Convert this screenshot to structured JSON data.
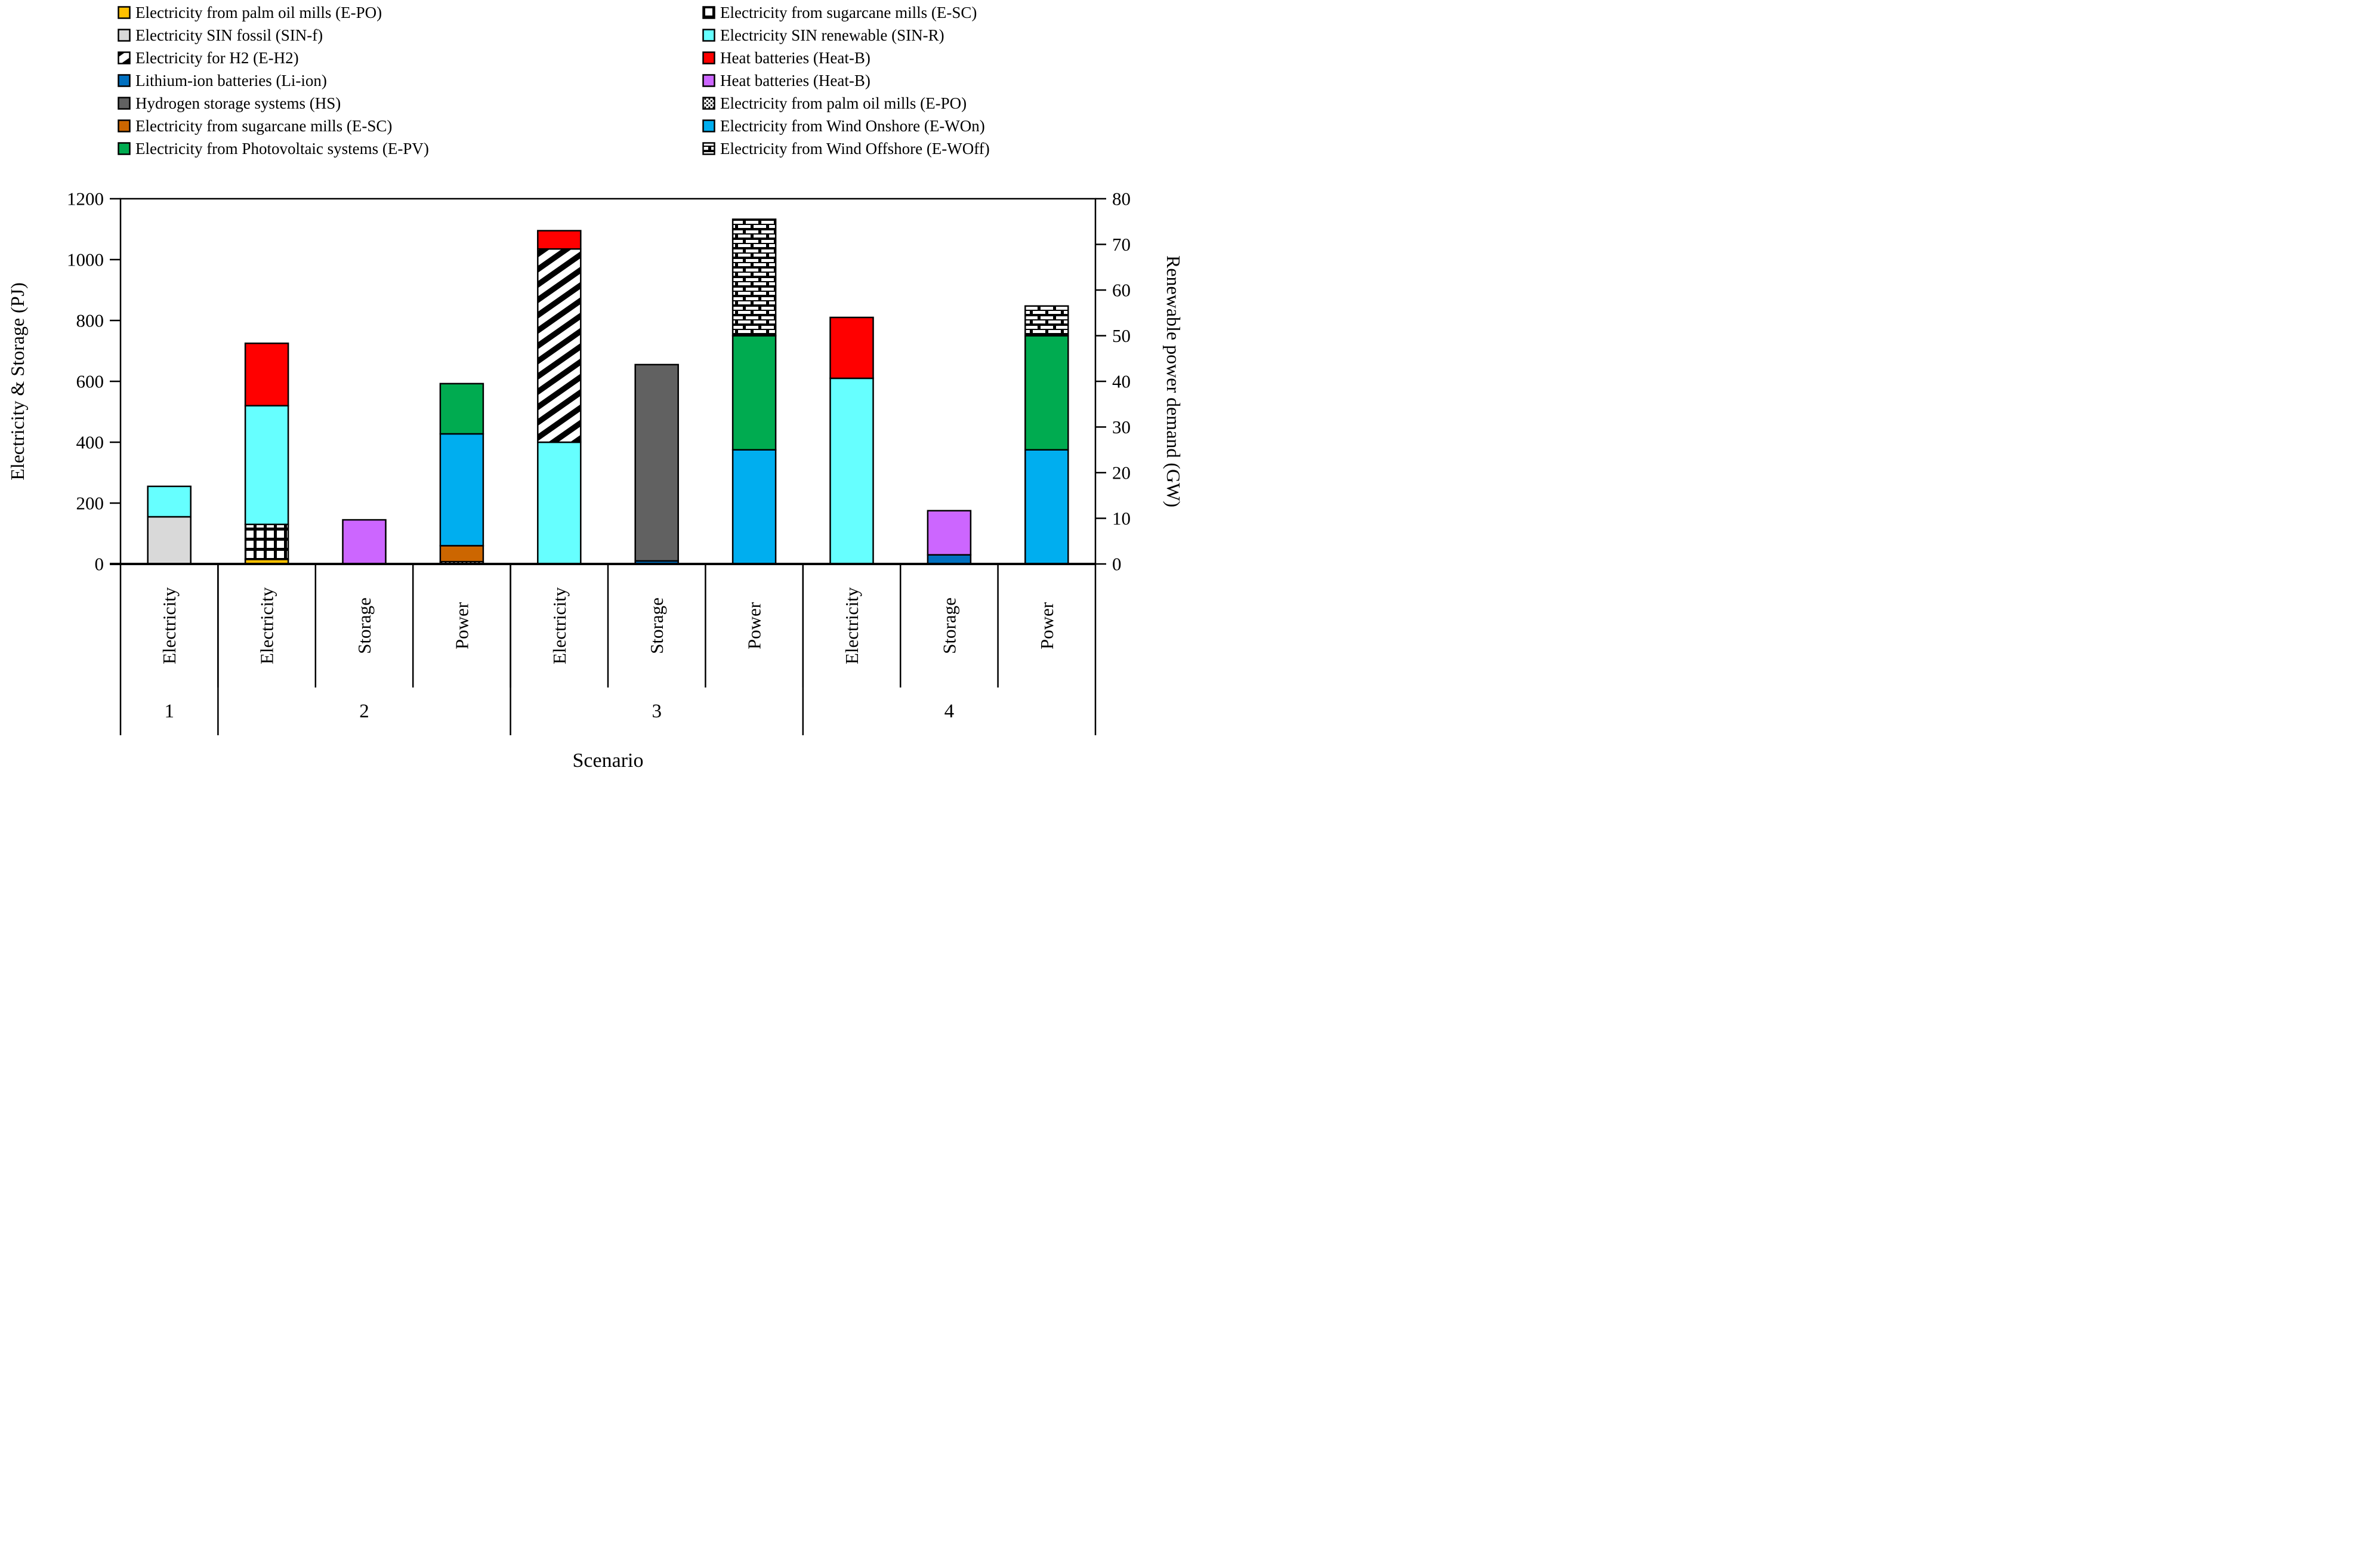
{
  "chart_data": {
    "type": "bar",
    "subtype": "stacked-grouped-dual-axis",
    "xlabel": "Scenario",
    "left_axis": {
      "label": "Electricity & Storage (PJ)",
      "min": 0,
      "max": 1200,
      "ticks": [
        0,
        200,
        400,
        600,
        800,
        1000,
        1200
      ],
      "unit": "PJ"
    },
    "right_axis": {
      "label": "Renewable power demand (GW)",
      "min": 0,
      "max": 80,
      "ticks": [
        0,
        10,
        20,
        30,
        40,
        50,
        60,
        70,
        80
      ],
      "unit": "GW"
    },
    "grid": false,
    "legend_position": "top",
    "series_styles": {
      "E-PO": {
        "fill": "#FFC000",
        "desc": "solid amber"
      },
      "SIN-f": {
        "fill": "#D9D9D9",
        "desc": "solid light gray"
      },
      "E-H2": {
        "pattern": "pat-diag",
        "desc": "black diagonal hatch on white"
      },
      "Li-ion": {
        "fill": "#0070C0",
        "desc": "solid dark blue"
      },
      "HS": {
        "fill": "#616161",
        "desc": "solid dark gray"
      },
      "E-SC": {
        "fill": "#CC6600",
        "desc": "solid brown"
      },
      "E-PV": {
        "fill": "#00AB50",
        "desc": "solid green"
      },
      "E-SC-hatch": {
        "pattern": "pat-grid",
        "desc": "black grid hatch on white"
      },
      "SIN-R": {
        "fill": "#66FFFF",
        "desc": "solid cyan"
      },
      "Heat-B-red": {
        "fill": "#FF0000",
        "desc": "solid red"
      },
      "Heat-B-purple": {
        "fill": "#CC66FF",
        "desc": "solid light purple"
      },
      "E-PO-hatch": {
        "pattern": "pat-dots",
        "desc": "black dotted hatch on white"
      },
      "E-WOn": {
        "fill": "#00AEEF",
        "desc": "solid light blue"
      },
      "E-WOff": {
        "pattern": "pat-brick",
        "desc": "black brick hatch on white"
      }
    },
    "groups": [
      {
        "scenario": "1",
        "bars": [
          {
            "category": "Electricity",
            "axis": "left",
            "total": 255,
            "segments": [
              {
                "series": "SIN-f",
                "label": "Electricity SIN fossil (SIN-f)",
                "value": 155
              },
              {
                "series": "SIN-R",
                "label": "Electricity SIN renewable (SIN-R)",
                "value": 100
              }
            ]
          }
        ]
      },
      {
        "scenario": "2",
        "bars": [
          {
            "category": "Electricity",
            "axis": "left",
            "total": 725,
            "segments": [
              {
                "series": "E-PO",
                "label": "Electricity from palm oil mills (E-PO)",
                "value": 15
              },
              {
                "series": "E-SC-hatch",
                "label": "Electricity from sugarcane mills (E-SC)",
                "value": 115
              },
              {
                "series": "SIN-R",
                "label": "Electricity SIN renewable (SIN-R)",
                "value": 390
              },
              {
                "series": "Heat-B-red",
                "label": "Heat batteries (Heat-B)",
                "value": 205
              }
            ]
          },
          {
            "category": "Storage",
            "axis": "left",
            "total": 145,
            "segments": [
              {
                "series": "Heat-B-purple",
                "label": "Heat batteries (Heat-B)",
                "value": 145
              }
            ]
          },
          {
            "category": "Power",
            "axis": "right",
            "total": 39.5,
            "segments": [
              {
                "series": "E-PO-hatch",
                "label": "Electricity from palm oil mills (E-PO)",
                "value": 0.5
              },
              {
                "series": "E-SC",
                "label": "Electricity from sugarcane mills (E-SC)",
                "value": 3.5
              },
              {
                "series": "E-WOn",
                "label": "Electricity from Wind Onshore (E-WOn)",
                "value": 24.5
              },
              {
                "series": "E-PV",
                "label": "Electricity from Photovoltaic systems (E-PV)",
                "value": 11
              }
            ]
          }
        ]
      },
      {
        "scenario": "3",
        "bars": [
          {
            "category": "Electricity",
            "axis": "left",
            "total": 1095,
            "segments": [
              {
                "series": "SIN-R",
                "label": "Electricity SIN renewable (SIN-R)",
                "value": 400
              },
              {
                "series": "E-H2",
                "label": "Electricity for H2 (E-H2)",
                "value": 635
              },
              {
                "series": "Heat-B-red",
                "label": "Heat batteries (Heat-B)",
                "value": 60
              }
            ]
          },
          {
            "category": "Storage",
            "axis": "left",
            "total": 655,
            "segments": [
              {
                "series": "Li-ion",
                "label": "Lithium-ion batteries (Li-ion)",
                "value": 10
              },
              {
                "series": "HS",
                "label": "Hydrogen storage systems (HS)",
                "value": 645
              }
            ]
          },
          {
            "category": "Power",
            "axis": "right",
            "total": 75.5,
            "segments": [
              {
                "series": "E-WOn",
                "label": "Electricity from Wind Onshore (E-WOn)",
                "value": 25
              },
              {
                "series": "E-PV",
                "label": "Electricity from Photovoltaic systems (E-PV)",
                "value": 25
              },
              {
                "series": "E-WOff",
                "label": "Electricity from Wind Offshore (E-WOff)",
                "value": 25.5
              }
            ]
          }
        ]
      },
      {
        "scenario": "4",
        "bars": [
          {
            "category": "Electricity",
            "axis": "left",
            "total": 810,
            "segments": [
              {
                "series": "SIN-R",
                "label": "Electricity SIN renewable (SIN-R)",
                "value": 610
              },
              {
                "series": "Heat-B-red",
                "label": "Heat batteries (Heat-B)",
                "value": 200
              }
            ]
          },
          {
            "category": "Storage",
            "axis": "left",
            "total": 175,
            "segments": [
              {
                "series": "Li-ion",
                "label": "Lithium-ion batteries (Li-ion)",
                "value": 30
              },
              {
                "series": "Heat-B-purple",
                "label": "Heat batteries (Heat-B)",
                "value": 145
              }
            ]
          },
          {
            "category": "Power",
            "axis": "right",
            "total": 56.5,
            "segments": [
              {
                "series": "E-WOn",
                "label": "Electricity from Wind Onshore (E-WOn)",
                "value": 25
              },
              {
                "series": "E-PV",
                "label": "Electricity from Photovoltaic systems (E-PV)",
                "value": 25
              },
              {
                "series": "E-WOff",
                "label": "Electricity from Wind Offshore (E-WOff)",
                "value": 6.5
              }
            ]
          }
        ]
      }
    ]
  },
  "legend": {
    "columns": [
      {
        "items": [
          {
            "style": "E-PO",
            "label": "Electricity from palm oil mills (E-PO)"
          },
          {
            "style": "SIN-f",
            "label": "Electricity SIN fossil (SIN-f)"
          },
          {
            "style": "E-H2",
            "label": "Electricity for H2 (E-H2)"
          },
          {
            "style": "Li-ion",
            "label": "Lithium-ion batteries (Li-ion)"
          },
          {
            "style": "HS",
            "label": "Hydrogen storage systems (HS)"
          },
          {
            "style": "E-SC",
            "label": "Electricity from sugarcane mills (E-SC)"
          },
          {
            "style": "E-PV",
            "label": "Electricity from Photovoltaic systems (E-PV)"
          }
        ]
      },
      {
        "items": [
          {
            "style": "E-SC-hatch",
            "label": "Electricity from sugarcane mills (E-SC)"
          },
          {
            "style": "SIN-R",
            "label": "Electricity SIN renewable (SIN-R)"
          },
          {
            "style": "Heat-B-red",
            "label": "Heat batteries (Heat-B)"
          },
          {
            "style": "Heat-B-purple",
            "label": "Heat batteries (Heat-B)"
          },
          {
            "style": "E-PO-hatch",
            "label": "Electricity from palm oil mills (E-PO)"
          },
          {
            "style": "E-WOn",
            "label": "Electricity from Wind Onshore (E-WOn)"
          },
          {
            "style": "E-WOff",
            "label": "Electricity from Wind Offshore (E-WOff)"
          }
        ]
      }
    ]
  }
}
